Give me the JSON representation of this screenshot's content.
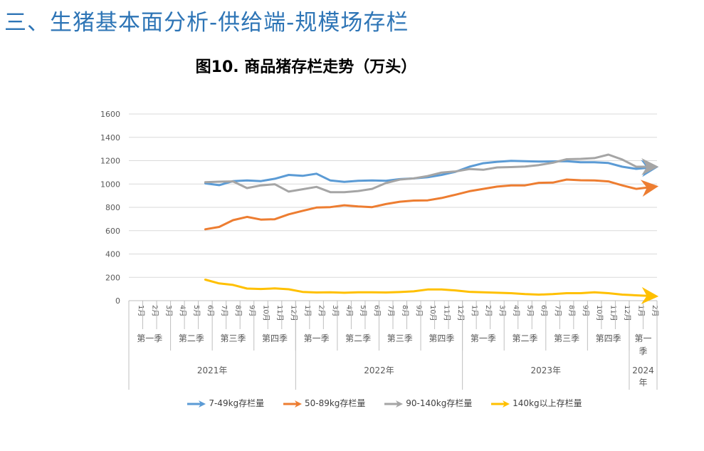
{
  "page": {
    "section_title": "三、生猪基本面分析-供给端-规模场存栏"
  },
  "chart_data": {
    "type": "line",
    "title": "图10. 商品猪存栏走势（万头）",
    "ylim": [
      0,
      1600
    ],
    "yticks": [
      "0",
      "200",
      "400",
      "600",
      "800",
      "1000",
      "1200",
      "1400",
      "1600"
    ],
    "months": [
      "1月",
      "2月",
      "3月",
      "4月",
      "5月",
      "6月",
      "7月",
      "8月",
      "9月",
      "10月",
      "11月",
      "12月",
      "1月",
      "2月",
      "3月",
      "4月",
      "5月",
      "6月",
      "7月",
      "8月",
      "9月",
      "10月",
      "11月",
      "12月",
      "1月",
      "2月",
      "3月",
      "4月",
      "5月",
      "6月",
      "7月",
      "8月",
      "9月",
      "10月",
      "11月",
      "12月",
      "1月",
      "2月"
    ],
    "quarters": [
      {
        "label": "第一季",
        "span": 3
      },
      {
        "label": "第二季",
        "span": 3
      },
      {
        "label": "第三季",
        "span": 3
      },
      {
        "label": "第四季",
        "span": 3
      },
      {
        "label": "第一季",
        "span": 3
      },
      {
        "label": "第二季",
        "span": 3
      },
      {
        "label": "第三季",
        "span": 3
      },
      {
        "label": "第四季",
        "span": 3
      },
      {
        "label": "第一季",
        "span": 3
      },
      {
        "label": "第二季",
        "span": 3
      },
      {
        "label": "第三季",
        "span": 3
      },
      {
        "label": "第四季",
        "span": 3
      },
      {
        "label": "第一季",
        "span": 2
      }
    ],
    "years": [
      {
        "label": "2021年",
        "span": 12
      },
      {
        "label": "2022年",
        "span": 12
      },
      {
        "label": "2023年",
        "span": 12
      },
      {
        "label": "2024年",
        "span": 2
      }
    ],
    "series": [
      {
        "name": "7-49kg存栏量",
        "color": "#5b9bd5",
        "values": [
          null,
          null,
          null,
          null,
          null,
          1005,
          990,
          1025,
          1030,
          1025,
          1045,
          1078,
          1070,
          1088,
          1030,
          1018,
          1028,
          1030,
          1028,
          1042,
          1048,
          1058,
          1078,
          1105,
          1148,
          1178,
          1190,
          1198,
          1195,
          1192,
          1194,
          1196,
          1186,
          1186,
          1180,
          1148,
          1130,
          1140
        ]
      },
      {
        "name": "50-89kg存栏量",
        "color": "#ed7d31",
        "values": [
          null,
          null,
          null,
          null,
          null,
          612,
          632,
          690,
          718,
          695,
          698,
          740,
          770,
          798,
          802,
          818,
          808,
          802,
          828,
          848,
          858,
          860,
          880,
          908,
          938,
          958,
          978,
          988,
          988,
          1010,
          1012,
          1038,
          1032,
          1030,
          1022,
          988,
          958,
          972
        ]
      },
      {
        "name": "90-140kg存栏量",
        "color": "#a5a5a5",
        "values": [
          null,
          null,
          null,
          null,
          null,
          1015,
          1020,
          1022,
          965,
          988,
          998,
          935,
          955,
          975,
          930,
          930,
          940,
          958,
          1008,
          1038,
          1048,
          1068,
          1098,
          1108,
          1128,
          1122,
          1142,
          1145,
          1150,
          1162,
          1182,
          1212,
          1215,
          1222,
          1252,
          1210,
          1148,
          1148
        ]
      },
      {
        "name": "140kg以上存栏量",
        "color": "#ffc000",
        "values": [
          null,
          null,
          null,
          null,
          null,
          180,
          148,
          135,
          104,
          100,
          105,
          98,
          75,
          70,
          72,
          68,
          72,
          72,
          70,
          74,
          80,
          96,
          96,
          88,
          76,
          72,
          68,
          64,
          56,
          52,
          56,
          64,
          64,
          72,
          64,
          52,
          46,
          40
        ]
      }
    ]
  }
}
